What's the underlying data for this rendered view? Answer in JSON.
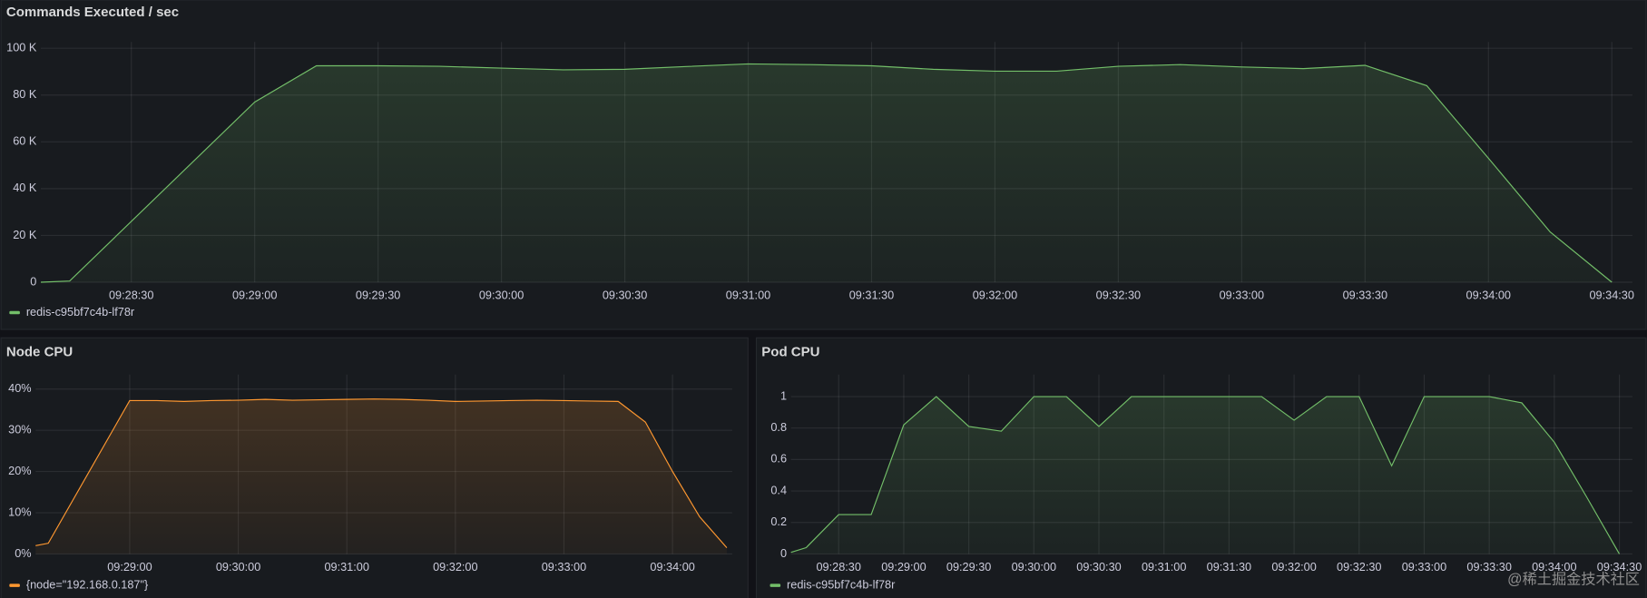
{
  "chart_data": [
    {
      "type": "area",
      "title": "Commands Executed / sec",
      "x": [
        "09:28:08",
        "09:28:15",
        "09:29:00",
        "09:29:15",
        "09:29:30",
        "09:29:45",
        "09:30:00",
        "09:30:15",
        "09:30:30",
        "09:30:45",
        "09:31:00",
        "09:31:15",
        "09:31:30",
        "09:31:45",
        "09:32:00",
        "09:32:15",
        "09:32:30",
        "09:32:45",
        "09:33:00",
        "09:33:15",
        "09:33:30",
        "09:33:45",
        "09:34:00",
        "09:34:15",
        "09:34:30"
      ],
      "series": [
        {
          "name": "redis-c95bf7c4b-lf78r",
          "color": "#73bf69",
          "values": [
            0,
            500,
            77000,
            92500,
            92500,
            92300,
            91500,
            90800,
            91000,
            92200,
            93300,
            93000,
            92500,
            91000,
            90200,
            90200,
            92300,
            93000,
            92000,
            91300,
            92700,
            84000,
            53000,
            21500,
            0
          ]
        }
      ],
      "xlim": [
        "09:28:08",
        "09:34:35"
      ],
      "xticks": [
        "09:28:30",
        "09:29:00",
        "09:29:30",
        "09:30:00",
        "09:30:30",
        "09:31:00",
        "09:31:30",
        "09:32:00",
        "09:32:30",
        "09:33:00",
        "09:33:30",
        "09:34:00",
        "09:34:30"
      ],
      "ylim": [
        0,
        100000
      ],
      "yticks": [
        0,
        {
          "value": 20000,
          "label": "20 K"
        },
        {
          "value": 40000,
          "label": "40 K"
        },
        {
          "value": 60000,
          "label": "60 K"
        },
        {
          "value": 80000,
          "label": "80 K"
        },
        {
          "value": 100000,
          "label": "100 K"
        }
      ],
      "grid": true
    },
    {
      "type": "area",
      "title": "Node CPU",
      "x": [
        "09:28:08",
        "09:28:15",
        "09:29:00",
        "09:29:15",
        "09:29:30",
        "09:29:45",
        "09:30:00",
        "09:30:15",
        "09:30:30",
        "09:30:45",
        "09:31:00",
        "09:31:15",
        "09:31:30",
        "09:31:45",
        "09:32:00",
        "09:32:15",
        "09:32:30",
        "09:32:45",
        "09:33:00",
        "09:33:15",
        "09:33:30",
        "09:33:45",
        "09:34:00",
        "09:34:15",
        "09:34:30"
      ],
      "series": [
        {
          "name": "{node=\"192.168.0.187\"}",
          "color": "#ff9830",
          "values": [
            2,
            2.6,
            37.2,
            37.2,
            37,
            37.2,
            37.3,
            37.5,
            37.3,
            37.4,
            37.5,
            37.6,
            37.5,
            37.3,
            37,
            37.1,
            37.2,
            37.3,
            37.2,
            37.1,
            37,
            32,
            20,
            9,
            1.5
          ]
        }
      ],
      "xlim": [
        "09:28:08",
        "09:34:33"
      ],
      "xticks": [
        "09:29:00",
        "09:30:00",
        "09:31:00",
        "09:32:00",
        "09:33:00",
        "09:34:00"
      ],
      "ylim": [
        0,
        42
      ],
      "yticks": [
        {
          "value": 0,
          "label": "0%"
        },
        {
          "value": 10,
          "label": "10%"
        },
        {
          "value": 20,
          "label": "20%"
        },
        {
          "value": 30,
          "label": "30%"
        },
        {
          "value": 40,
          "label": "40%"
        }
      ],
      "grid": true
    },
    {
      "type": "area",
      "title": "Pod CPU",
      "x": [
        "09:28:08",
        "09:28:15",
        "09:28:30",
        "09:28:45",
        "09:29:00",
        "09:29:15",
        "09:29:30",
        "09:29:45",
        "09:30:00",
        "09:30:15",
        "09:30:30",
        "09:30:45",
        "09:31:00",
        "09:31:15",
        "09:31:30",
        "09:31:45",
        "09:32:00",
        "09:32:15",
        "09:32:30",
        "09:32:45",
        "09:33:00",
        "09:33:15",
        "09:33:30",
        "09:33:45",
        "09:34:00",
        "09:34:15",
        "09:34:30"
      ],
      "series": [
        {
          "name": "redis-c95bf7c4b-lf78r",
          "color": "#73bf69",
          "values": [
            0.01,
            0.04,
            0.25,
            0.25,
            0.82,
            1,
            0.81,
            0.78,
            1,
            1,
            0.81,
            1,
            1,
            1,
            1,
            1,
            0.85,
            1,
            1,
            0.56,
            1,
            1,
            1,
            0.96,
            0.71,
            0.36,
            0
          ]
        }
      ],
      "xlim": [
        "09:28:08",
        "09:34:36"
      ],
      "xticks": [
        "09:28:30",
        "09:29:00",
        "09:29:30",
        "09:30:00",
        "09:30:30",
        "09:31:00",
        "09:31:30",
        "09:32:00",
        "09:32:30",
        "09:33:00",
        "09:33:30",
        "09:34:00",
        "09:34:30"
      ],
      "ylim": [
        0,
        1.1
      ],
      "yticks": [
        0,
        0.2,
        0.4,
        0.6,
        0.8,
        1
      ],
      "grid": true
    }
  ],
  "watermark": "@稀土掘金技术社区"
}
